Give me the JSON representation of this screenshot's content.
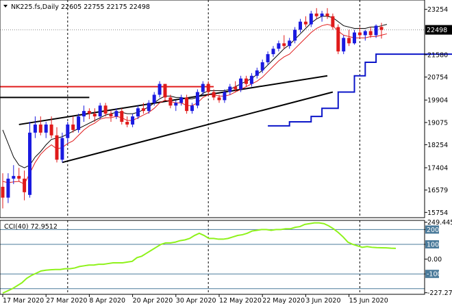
{
  "header": {
    "symbol_label": "NK225.fs,Daily",
    "ohlc_label": "22605 22755 22175 22498"
  },
  "indicator": {
    "label": "CCI(40) 72.9512"
  },
  "colors": {
    "bull": "#1a1ae0",
    "bear": "#e01a1a",
    "ma_fast": "#e01a1a",
    "ma_slow": "#000000",
    "channel": "#0a14c8",
    "cci": "#8ef21a",
    "resistance": "#e01a1a",
    "trendline": "#000000",
    "level_line": "#4a7a9a"
  },
  "chart_data": [
    {
      "type": "candlestick",
      "title": "",
      "ylim": [
        15560,
        23600
      ],
      "y_ticks": [
        "23254",
        "22498",
        "21580",
        "20754",
        "19904",
        "19075",
        "18254",
        "17404",
        "16579",
        "15754"
      ],
      "y_tick_values": [
        23254,
        22498,
        21580,
        20754,
        19904,
        19075,
        18254,
        17404,
        16579,
        15754
      ],
      "current_price_label": "22498",
      "x_ticks": [
        "17 Mar 2020",
        "27 Mar 2020",
        "8 Apr 2020",
        "20 Apr 2020",
        "30 Apr 2020",
        "12 May 2020",
        "22 May 2020",
        "3 Jun 2020",
        "15 Jun 2020"
      ],
      "x_tick_index": [
        0,
        8,
        16,
        24,
        32,
        40,
        48,
        56,
        64
      ],
      "candles": [
        [
          16700,
          17200,
          15900,
          16300
        ],
        [
          16300,
          17200,
          16100,
          17000
        ],
        [
          17000,
          17500,
          16800,
          17100
        ],
        [
          17100,
          17400,
          16900,
          17000
        ],
        [
          17000,
          17300,
          16200,
          16500
        ],
        [
          16400,
          19100,
          16300,
          18700
        ],
        [
          18700,
          19300,
          18500,
          19000
        ],
        [
          19000,
          19300,
          18600,
          18700
        ],
        [
          18700,
          19100,
          18500,
          19000
        ],
        [
          19000,
          19300,
          18500,
          18600
        ],
        [
          18600,
          18900,
          17600,
          17700
        ],
        [
          17700,
          18700,
          17600,
          18500
        ],
        [
          18500,
          19100,
          18300,
          19000
        ],
        [
          19000,
          19300,
          18700,
          18800
        ],
        [
          18800,
          19400,
          18700,
          19300
        ],
        [
          19300,
          19700,
          19100,
          19500
        ],
        [
          19500,
          19600,
          19200,
          19400
        ],
        [
          19400,
          19600,
          19100,
          19300
        ],
        [
          19300,
          19800,
          19200,
          19700
        ],
        [
          19700,
          19800,
          19300,
          19400
        ],
        [
          19400,
          19500,
          19100,
          19300
        ],
        [
          19300,
          19600,
          19200,
          19500
        ],
        [
          19500,
          19600,
          19000,
          19100
        ],
        [
          19100,
          19300,
          18900,
          19000
        ],
        [
          19000,
          19400,
          18900,
          19300
        ],
        [
          19300,
          19700,
          19200,
          19600
        ],
        [
          19600,
          19800,
          19400,
          19500
        ],
        [
          19500,
          19900,
          19400,
          19800
        ],
        [
          19800,
          20200,
          19700,
          20100
        ],
        [
          20100,
          20600,
          20000,
          20500
        ],
        [
          20500,
          20500,
          19900,
          20000
        ],
        [
          20000,
          20100,
          19600,
          19700
        ],
        [
          19700,
          19900,
          19500,
          19800
        ],
        [
          19800,
          20100,
          19700,
          20000
        ],
        [
          20000,
          20100,
          19400,
          19500
        ],
        [
          19500,
          19800,
          19400,
          19700
        ],
        [
          19700,
          20300,
          19600,
          20200
        ],
        [
          20200,
          20600,
          20100,
          20500
        ],
        [
          20500,
          20600,
          20100,
          20200
        ],
        [
          20200,
          20300,
          19900,
          20000
        ],
        [
          20000,
          20100,
          19800,
          19900
        ],
        [
          19900,
          20300,
          19800,
          20200
        ],
        [
          20200,
          20500,
          20100,
          20400
        ],
        [
          20400,
          20600,
          20200,
          20300
        ],
        [
          20300,
          20800,
          20200,
          20700
        ],
        [
          20700,
          20800,
          20400,
          20500
        ],
        [
          20500,
          20900,
          20400,
          20800
        ],
        [
          20800,
          21100,
          20700,
          21000
        ],
        [
          21000,
          21400,
          20900,
          21300
        ],
        [
          21300,
          21700,
          21200,
          21600
        ],
        [
          21600,
          21900,
          21500,
          21800
        ],
        [
          21800,
          22100,
          21700,
          22000
        ],
        [
          22000,
          22300,
          21800,
          21900
        ],
        [
          21900,
          22200,
          21800,
          22100
        ],
        [
          22100,
          22600,
          22000,
          22500
        ],
        [
          22500,
          22900,
          22400,
          22800
        ],
        [
          22800,
          23000,
          22600,
          22700
        ],
        [
          22700,
          23200,
          22600,
          23100
        ],
        [
          23100,
          23300,
          22900,
          23000
        ],
        [
          23000,
          23200,
          22800,
          23100
        ],
        [
          23100,
          23300,
          22900,
          23000
        ],
        [
          23000,
          23100,
          22500,
          22600
        ],
        [
          22600,
          22700,
          21600,
          21700
        ],
        [
          21700,
          22300,
          21600,
          22200
        ],
        [
          22200,
          22500,
          21900,
          22000
        ],
        [
          22000,
          22500,
          21950,
          22400
        ],
        [
          22400,
          22600,
          22200,
          22300
        ],
        [
          22300,
          22500,
          22100,
          22450
        ],
        [
          22450,
          22600,
          22200,
          22300
        ],
        [
          22300,
          22700,
          22200,
          22650
        ],
        [
          22605,
          22755,
          22175,
          22498
        ]
      ],
      "ma_fast": [
        16900,
        16850,
        16880,
        16900,
        16800,
        17200,
        17600,
        17900,
        18100,
        18250,
        18100,
        18150,
        18300,
        18400,
        18600,
        18800,
        18950,
        19050,
        19200,
        19250,
        19250,
        19300,
        19250,
        19150,
        19150,
        19250,
        19350,
        19450,
        19600,
        19800,
        19900,
        19850,
        19800,
        19800,
        19700,
        19700,
        19800,
        20000,
        20100,
        20100,
        20050,
        20050,
        20100,
        20200,
        20300,
        20400,
        20500,
        20600,
        20750,
        20950,
        21150,
        21350,
        21500,
        21600,
        21800,
        22000,
        22200,
        22400,
        22550,
        22650,
        22700,
        22650,
        22450,
        22300,
        22250,
        22200,
        22200,
        22200,
        22250,
        22250,
        22300,
        22350
      ],
      "ma_slow": [
        18800,
        18300,
        17800,
        17500,
        17400,
        17500,
        17800,
        18000,
        18250,
        18450,
        18500,
        18550,
        18650,
        18750,
        18850,
        18950,
        19050,
        19150,
        19250,
        19350,
        19400,
        19450,
        19450,
        19400,
        19400,
        19450,
        19550,
        19650,
        19800,
        19950,
        20050,
        20050,
        20000,
        20000,
        19950,
        19950,
        20000,
        20150,
        20250,
        20250,
        20250,
        20250,
        20300,
        20400,
        20500,
        20600,
        20700,
        20850,
        21000,
        21200,
        21400,
        21600,
        21800,
        21950,
        22150,
        22350,
        22550,
        22750,
        22900,
        23000,
        23000,
        22950,
        22800,
        22650,
        22600,
        22550,
        22550,
        22550,
        22600,
        22600,
        22650,
        22700
      ],
      "lowest_low_channel": [
        [
          49,
          18950
        ],
        [
          53,
          18950
        ],
        [
          53,
          19100
        ],
        [
          57,
          19100
        ],
        [
          57,
          19300
        ],
        [
          59,
          19300
        ],
        [
          59,
          19600
        ],
        [
          62,
          19600
        ],
        [
          62,
          20200
        ],
        [
          65,
          20200
        ],
        [
          65,
          20800
        ],
        [
          67,
          20800
        ],
        [
          67,
          21300
        ],
        [
          69,
          21300
        ],
        [
          69,
          21600
        ],
        [
          86,
          21600
        ]
      ],
      "resistance_line": [
        [
          -2,
          20400
        ],
        [
          39,
          20400
        ]
      ],
      "level_line": [
        [
          -2,
          20000
        ],
        [
          16,
          20000
        ]
      ],
      "trendlines": [
        [
          [
            3,
            19000
          ],
          [
            60,
            20800
          ]
        ],
        [
          [
            11,
            17600
          ],
          [
            61,
            20200
          ]
        ]
      ],
      "vertical_dashed_index": [
        12,
        38,
        66
      ]
    },
    {
      "type": "line",
      "title": "",
      "series": [
        {
          "name": "",
          "values": [
            -230,
            -215,
            -200,
            -180,
            -160,
            -130,
            -110,
            -95,
            -80,
            -75,
            -72,
            -70,
            -70,
            -65,
            -65,
            -60,
            -50,
            -45,
            -40,
            -40,
            -35,
            -35,
            -30,
            -25,
            -25,
            -25,
            -20,
            -15,
            10,
            20,
            40,
            60,
            80,
            100,
            110,
            110,
            115,
            125,
            130,
            140,
            160,
            175,
            160,
            140,
            140,
            135,
            135,
            140,
            150,
            160,
            165,
            175,
            190,
            195,
            200,
            200,
            195,
            200,
            200,
            205,
            205,
            215,
            220,
            235,
            240,
            245,
            245,
            240,
            225,
            205,
            180,
            150,
            115,
            100,
            90,
            80,
            85,
            80,
            78,
            77,
            76,
            74,
            73
          ]
        }
      ],
      "y_ticks": [
        "249.4451",
        "200",
        "100",
        "0.00",
        "-100",
        "-227.2738"
      ],
      "y_tick_values": [
        249.4451,
        200,
        100,
        0,
        -100,
        -227.2738
      ],
      "ylim": [
        -238,
        262
      ],
      "levels": [
        200,
        100,
        -100,
        -200
      ]
    }
  ]
}
